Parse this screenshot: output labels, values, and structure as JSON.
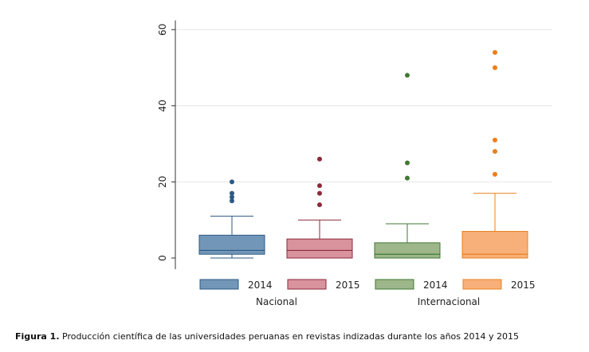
{
  "colors": {
    "nac_2014": "#7296b7",
    "nac_2015": "#d8939d",
    "int_2014": "#9db68a",
    "int_2015": "#f7b07a",
    "nac_2014_edge": "#2c5a85",
    "nac_2015_edge": "#8e2a3a",
    "int_2014_edge": "#3f7a32",
    "int_2015_edge": "#e8801e"
  },
  "caption": {
    "label": "Figura 1.",
    "text": "Producción científica de las universidades peruanas en revistas indizadas durante los años 2014 y 2015"
  },
  "chart_data": {
    "type": "boxplot",
    "title": "",
    "xlabel": "",
    "ylabel": "",
    "ylim": [
      0,
      62
    ],
    "yticks": [
      0,
      20,
      40,
      60
    ],
    "grid": true,
    "legend": {
      "placement": "bottom",
      "entries": [
        "2014",
        "2015",
        "2014",
        "2015"
      ],
      "groups": [
        "Nacional",
        "Internacional"
      ]
    },
    "series": [
      {
        "name": "2014",
        "group": "Nacional",
        "color_key": "nac_2014",
        "min": 0,
        "q1": 1,
        "median": 2,
        "q3": 6,
        "max": 11,
        "outliers": [
          15,
          16,
          17,
          20
        ]
      },
      {
        "name": "2015",
        "group": "Nacional",
        "color_key": "nac_2015",
        "min": 0,
        "q1": 0,
        "median": 2,
        "q3": 5,
        "max": 10,
        "outliers": [
          14,
          17,
          19,
          26
        ]
      },
      {
        "name": "2014",
        "group": "Internacional",
        "color_key": "int_2014",
        "min": 0,
        "q1": 0,
        "median": 1,
        "q3": 4,
        "max": 9,
        "outliers": [
          21,
          25,
          48
        ]
      },
      {
        "name": "2015",
        "group": "Internacional",
        "color_key": "int_2015",
        "min": 0,
        "q1": 0,
        "median": 1,
        "q3": 7,
        "max": 17,
        "outliers": [
          22,
          28,
          31,
          50,
          54
        ]
      }
    ]
  }
}
